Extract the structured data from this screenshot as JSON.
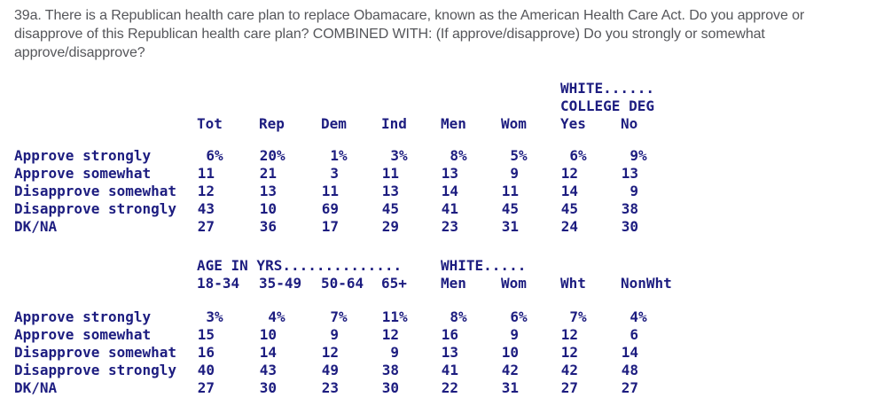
{
  "colors": {
    "question_text": "#55565a",
    "table_text": "#1d1d80",
    "background": "#ffffff"
  },
  "question": {
    "lines": [
      "39a. There is a Republican health care plan to replace Obamacare, known as the American Health Care Act. Do you approve or",
      "disapprove of this Republican health care plan? COMBINED WITH: (If approve/disapprove) Do you strongly or somewhat",
      "approve/disapprove?"
    ]
  },
  "table1": {
    "group_header_line1": "WHITE......",
    "group_header_line2": "COLLEGE DEG",
    "columns": [
      "Tot",
      "Rep",
      "Dem",
      "Ind",
      "Men",
      "Wom",
      "Yes",
      "No"
    ],
    "rows": [
      {
        "label": "Approve strongly",
        "suffix": "%",
        "values": [
          "6",
          "20",
          "1",
          "3",
          "8",
          "5",
          "6",
          "9"
        ]
      },
      {
        "label": "Approve somewhat",
        "suffix": "",
        "values": [
          "11",
          "21",
          "3",
          "11",
          "13",
          "9",
          "12",
          "13"
        ]
      },
      {
        "label": "Disapprove somewhat",
        "suffix": "",
        "values": [
          "12",
          "13",
          "11",
          "13",
          "14",
          "11",
          "14",
          "9"
        ]
      },
      {
        "label": "Disapprove strongly",
        "suffix": "",
        "values": [
          "43",
          "10",
          "69",
          "45",
          "41",
          "45",
          "45",
          "38"
        ]
      },
      {
        "label": "DK/NA",
        "suffix": "",
        "values": [
          "27",
          "36",
          "17",
          "29",
          "23",
          "31",
          "24",
          "30"
        ]
      }
    ]
  },
  "table2": {
    "group_header_age": "AGE IN YRS..............",
    "group_header_white": "WHITE.....",
    "columns": [
      "18-34",
      "35-49",
      "50-64",
      "65+",
      "Men",
      "Wom",
      "Wht",
      "NonWht"
    ],
    "rows": [
      {
        "label": "Approve strongly",
        "suffix": "%",
        "values": [
          "3",
          "4",
          "7",
          "11",
          "8",
          "6",
          "7",
          "4"
        ]
      },
      {
        "label": "Approve somewhat",
        "suffix": "",
        "values": [
          "15",
          "10",
          "9",
          "12",
          "16",
          "9",
          "12",
          "6"
        ]
      },
      {
        "label": "Disapprove somewhat",
        "suffix": "",
        "values": [
          "16",
          "14",
          "12",
          "9",
          "13",
          "10",
          "12",
          "14"
        ]
      },
      {
        "label": "Disapprove strongly",
        "suffix": "",
        "values": [
          "40",
          "43",
          "49",
          "38",
          "41",
          "42",
          "42",
          "48"
        ]
      },
      {
        "label": "DK/NA",
        "suffix": "",
        "values": [
          "27",
          "30",
          "23",
          "30",
          "22",
          "31",
          "27",
          "27"
        ]
      }
    ]
  }
}
